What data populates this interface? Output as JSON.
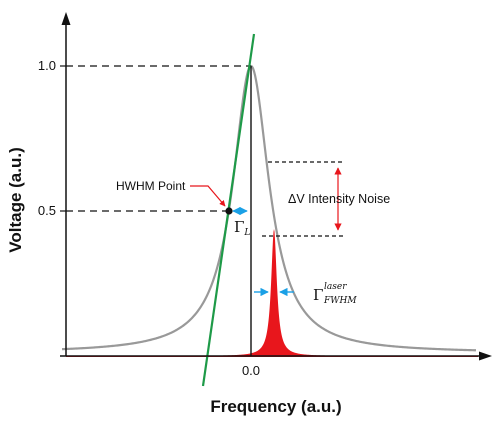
{
  "chart_data": {
    "type": "line",
    "xlabel": "Frequency (a.u.)",
    "ylabel": "Voltage (a.u.)",
    "x_ticks": [
      "0.0"
    ],
    "y_ticks": [
      "0.5",
      "1.0"
    ],
    "annotations": {
      "hwhm": "HWHM Point",
      "noise": "ΔV Intensity Noise",
      "gamma_l_symbol": "Γ",
      "gamma_l_sub": "L",
      "gamma_laser_symbol": "Γ",
      "gamma_laser_sup": "laser",
      "gamma_laser_sub": "FWHM"
    }
  },
  "colors": {
    "resonance_curve": "#999999",
    "tangent_line": "#1e9a48",
    "laser_peak": "#e8161c",
    "width_arrows": "#1aa0e6",
    "noise_arrow": "#e8161c",
    "axes": "#111111"
  }
}
